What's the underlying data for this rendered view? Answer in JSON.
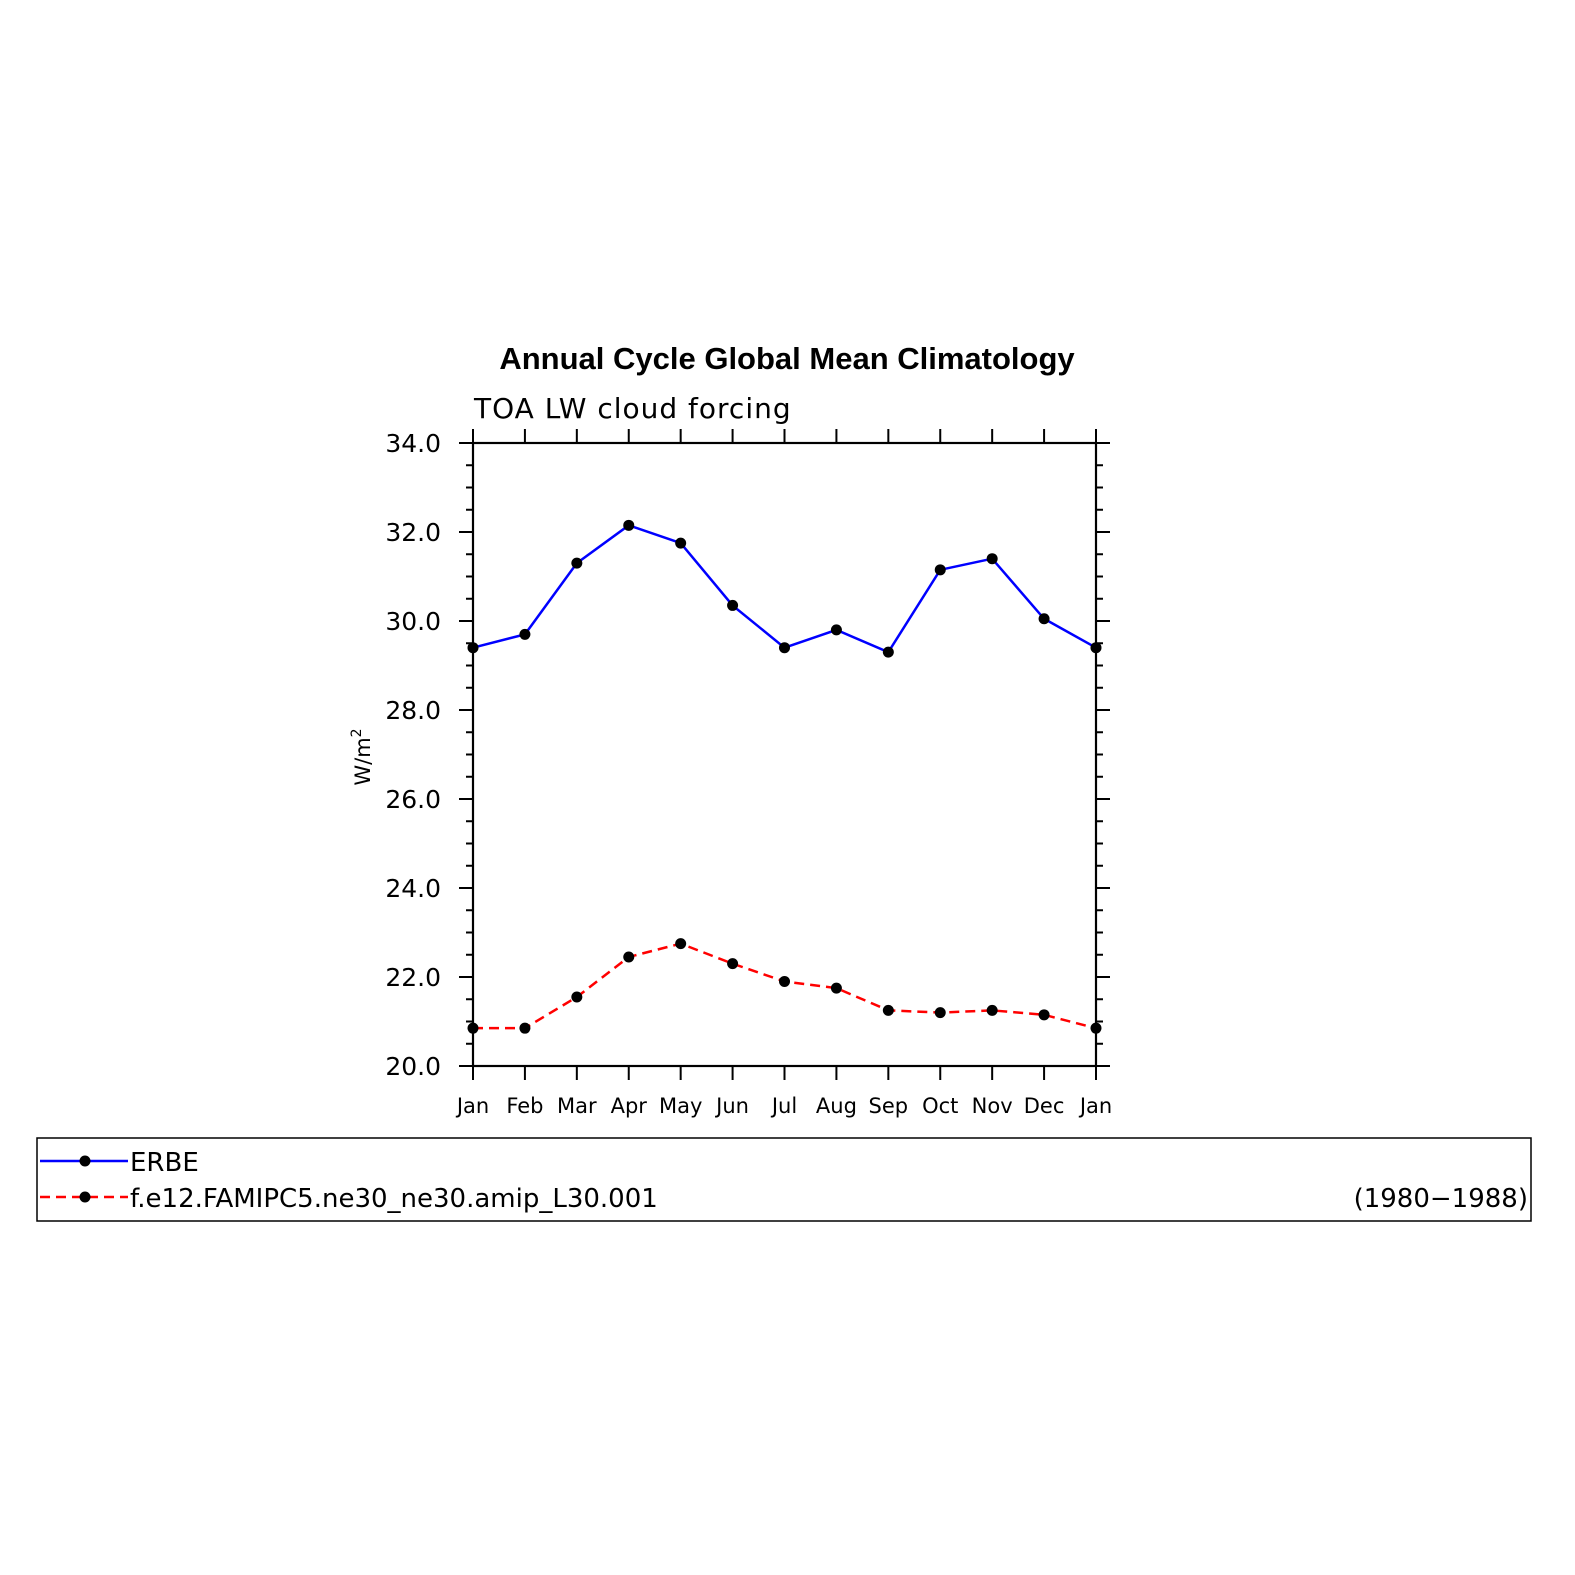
{
  "chart_data": {
    "type": "line",
    "title": "Annual Cycle Global Mean Climatology",
    "subtitle": "TOA LW cloud forcing",
    "xlabel": "",
    "ylabel": "W/m",
    "ylabel_superscript": "2",
    "categories": [
      "Jan",
      "Feb",
      "Mar",
      "Apr",
      "May",
      "Jun",
      "Jul",
      "Aug",
      "Sep",
      "Oct",
      "Nov",
      "Dec",
      "Jan"
    ],
    "yticks": [
      "20.0",
      "22.0",
      "24.0",
      "26.0",
      "28.0",
      "30.0",
      "32.0",
      "34.0"
    ],
    "ylim": [
      20,
      34
    ],
    "grid": false,
    "legend_position": "bottom",
    "legend_period": "(1980−1988)",
    "series": [
      {
        "name": "ERBE",
        "color": "#0000ff",
        "dash": "solid",
        "marker": "filled-circle",
        "values": [
          29.4,
          29.7,
          31.3,
          32.15,
          31.75,
          30.35,
          29.4,
          29.8,
          29.3,
          31.15,
          31.4,
          30.05,
          29.4
        ]
      },
      {
        "name": "f.e12.FAMIPC5.ne30_ne30.amip_L30.001",
        "color": "#ff0000",
        "dash": "dashed",
        "marker": "filled-circle",
        "values": [
          20.85,
          20.85,
          21.55,
          22.45,
          22.75,
          22.3,
          21.9,
          21.75,
          21.25,
          21.2,
          21.25,
          21.15,
          20.85
        ]
      }
    ]
  }
}
